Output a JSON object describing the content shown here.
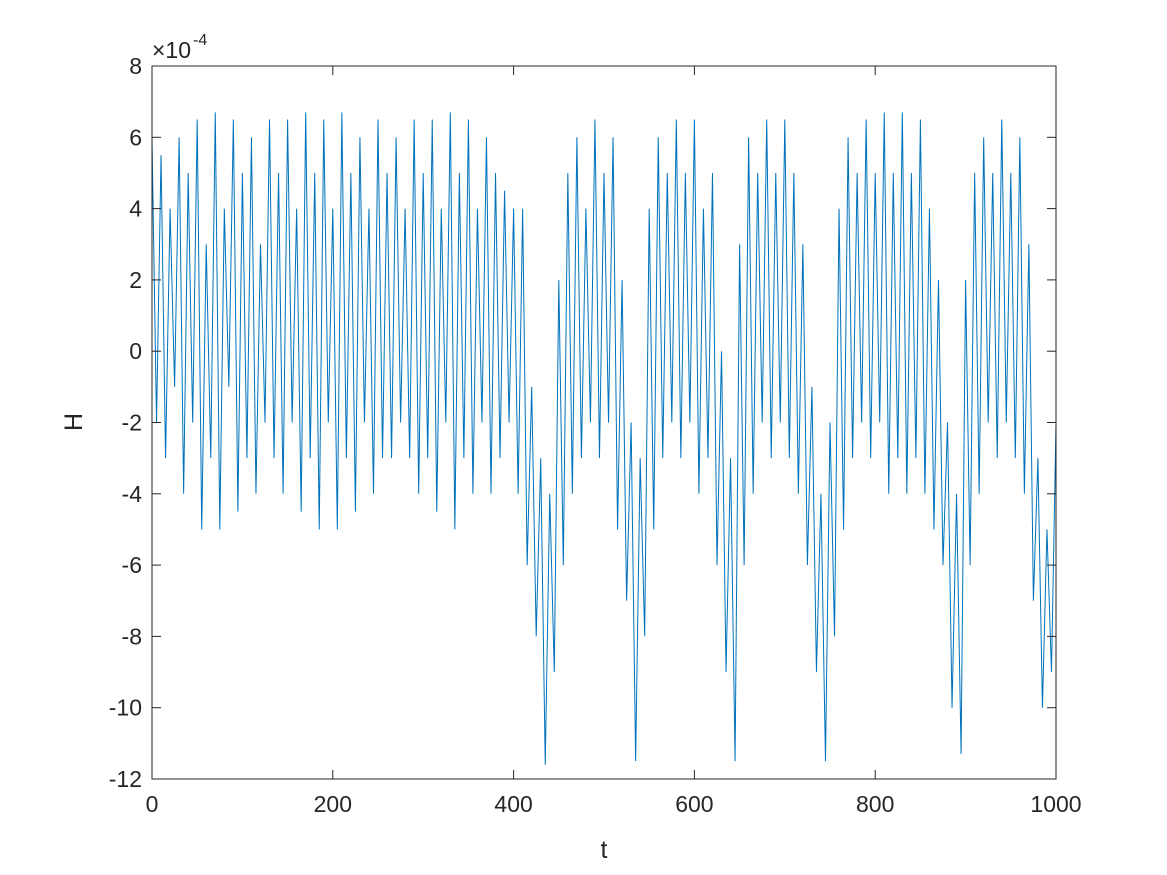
{
  "chart_data": {
    "type": "line",
    "xlabel": "t",
    "ylabel": "H",
    "y_exponent": {
      "base": "×10",
      "power": "-4"
    },
    "xlim": [
      0,
      1000
    ],
    "xticks": [
      0,
      200,
      400,
      600,
      800,
      1000
    ],
    "ylim": [
      -12,
      8
    ],
    "yticks": [
      -12,
      -10,
      -8,
      -6,
      -4,
      -2,
      0,
      2,
      4,
      6,
      8
    ],
    "grid": false,
    "box": true,
    "x": [
      0,
      5,
      10,
      15,
      20,
      25,
      30,
      35,
      40,
      45,
      50,
      55,
      60,
      65,
      70,
      75,
      80,
      85,
      90,
      95,
      100,
      105,
      110,
      115,
      120,
      125,
      130,
      135,
      140,
      145,
      150,
      155,
      160,
      165,
      170,
      175,
      180,
      185,
      190,
      195,
      200,
      205,
      210,
      215,
      220,
      225,
      230,
      235,
      240,
      245,
      250,
      255,
      260,
      265,
      270,
      275,
      280,
      285,
      290,
      295,
      300,
      305,
      310,
      315,
      320,
      325,
      330,
      335,
      340,
      345,
      350,
      355,
      360,
      365,
      370,
      375,
      380,
      385,
      390,
      395,
      400,
      405,
      410,
      415,
      420,
      425,
      430,
      435,
      440,
      445,
      450,
      455,
      460,
      465,
      470,
      475,
      480,
      485,
      490,
      495,
      500,
      505,
      510,
      515,
      520,
      525,
      530,
      535,
      540,
      545,
      550,
      555,
      560,
      565,
      570,
      575,
      580,
      585,
      590,
      595,
      600,
      605,
      610,
      615,
      620,
      625,
      630,
      635,
      640,
      645,
      650,
      655,
      660,
      665,
      670,
      675,
      680,
      685,
      690,
      695,
      700,
      705,
      710,
      715,
      720,
      725,
      730,
      735,
      740,
      745,
      750,
      755,
      760,
      765,
      770,
      775,
      780,
      785,
      790,
      795,
      800,
      805,
      810,
      815,
      820,
      825,
      830,
      835,
      840,
      845,
      850,
      855,
      860,
      865,
      870,
      875,
      880,
      885,
      890,
      895,
      900,
      905,
      910,
      915,
      920,
      925,
      930,
      935,
      940,
      945,
      950,
      955,
      960,
      965,
      970,
      975,
      980,
      985,
      990,
      995,
      1000
    ],
    "series": [
      {
        "color": "#0072bd",
        "values": [
          6,
          -2,
          5.5,
          -3,
          4,
          -1,
          6,
          -4,
          5,
          -2,
          6.5,
          -5,
          3,
          -3,
          6.7,
          -5,
          4,
          -1,
          6.5,
          -4.5,
          5,
          -3,
          6,
          -4,
          3,
          -2,
          6.5,
          -3,
          5,
          -4,
          6.5,
          -2,
          4,
          -4.5,
          6.7,
          -3,
          5,
          -5,
          6.5,
          -2,
          4,
          -5,
          6.7,
          -3,
          5,
          -4.5,
          6,
          -2,
          4,
          -4,
          6.5,
          -3,
          5,
          -3,
          6,
          -2,
          4,
          -3,
          6.5,
          -4,
          5,
          -3,
          6.5,
          -4.5,
          4,
          -2,
          6.7,
          -5,
          5,
          -3,
          6.5,
          -4,
          4,
          -2,
          6,
          -4,
          5,
          -3,
          4.5,
          -2,
          4,
          -4,
          4,
          -6,
          -1,
          -8,
          -3,
          -11.6,
          -4,
          -9,
          2,
          -6,
          5,
          -4,
          6,
          -3,
          4,
          -2,
          6.5,
          -3,
          5,
          -2,
          6,
          -5,
          2,
          -7,
          -2,
          -11.5,
          -3,
          -8,
          4,
          -5,
          6,
          -3,
          5,
          -2,
          6.5,
          -3,
          5,
          -2,
          6.5,
          -4,
          4,
          -3,
          5,
          -6,
          0,
          -9,
          -3,
          -11.5,
          3,
          -6,
          6,
          -4,
          5,
          -2,
          6.5,
          -3,
          5,
          -2,
          6.5,
          -3,
          5,
          -4,
          3,
          -6,
          -1,
          -9,
          -4,
          -11.5,
          -2,
          -8,
          4,
          -5,
          6,
          -3,
          5,
          -2,
          6.5,
          -3,
          5,
          -2,
          6.7,
          -4,
          5,
          -3,
          6.7,
          -4,
          5,
          -3,
          6.5,
          -4,
          4,
          -5,
          2,
          -6,
          -2,
          -10,
          -4,
          -11.3,
          2,
          -6,
          5,
          -4,
          6,
          -2,
          5,
          -3,
          6.5,
          -2,
          5,
          -3,
          6,
          -4,
          3,
          -7,
          -3,
          -10,
          -5,
          -9,
          -2
        ]
      }
    ]
  }
}
